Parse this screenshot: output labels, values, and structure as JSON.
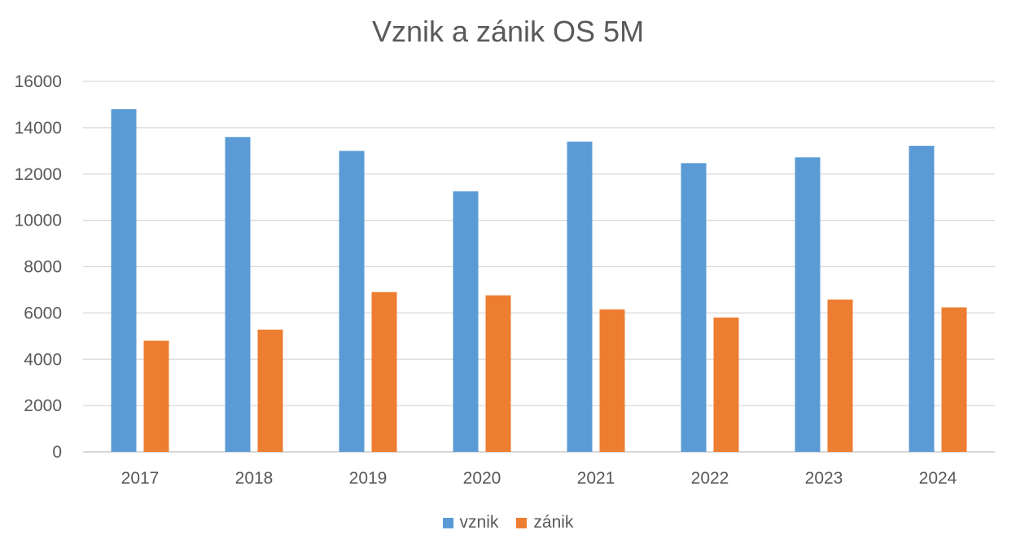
{
  "chart_data": {
    "type": "bar",
    "title": "Vznik a zánik OS 5M",
    "categories": [
      "2017",
      "2018",
      "2019",
      "2020",
      "2021",
      "2022",
      "2023",
      "2024"
    ],
    "series": [
      {
        "name": "vznik",
        "color": "#5B9BD5",
        "values": [
          14800,
          13600,
          13000,
          11250,
          13400,
          12470,
          12720,
          13220
        ]
      },
      {
        "name": "zánik",
        "color": "#ED7D31",
        "values": [
          4800,
          5280,
          6900,
          6760,
          6150,
          5800,
          6580,
          6240
        ]
      }
    ],
    "ylim": [
      0,
      16000
    ],
    "yticks": [
      "0",
      "2000",
      "4000",
      "6000",
      "8000",
      "10000",
      "12000",
      "14000",
      "16000"
    ],
    "grid": true,
    "legend_position": "bottom"
  }
}
